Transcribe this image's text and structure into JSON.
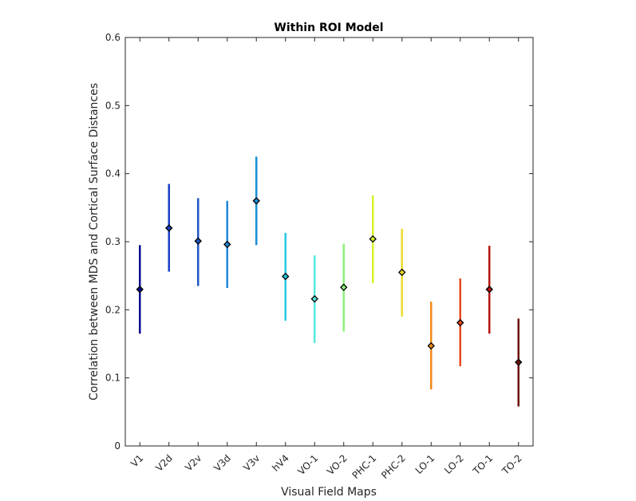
{
  "chart_data": {
    "type": "errorbar",
    "title": "Within ROI Model",
    "xlabel": "Visual Field Maps",
    "ylabel": "Correlation between MDS and Cortical Surface Distances",
    "ylim": [
      0,
      0.6
    ],
    "yticks": [
      "0",
      "0.1",
      "0.2",
      "0.3",
      "0.4",
      "0.5",
      "0.6"
    ],
    "grid": false,
    "categories": [
      "V1",
      "V2d",
      "V2v",
      "V3d",
      "V3v",
      "hV4",
      "VO-1",
      "VO-2",
      "PHC-1",
      "PHC-2",
      "LO-1",
      "LO-2",
      "TO-1",
      "TO-2"
    ],
    "values": [
      0.23,
      0.32,
      0.301,
      0.296,
      0.36,
      0.249,
      0.216,
      0.233,
      0.304,
      0.255,
      0.147,
      0.181,
      0.23,
      0.123
    ],
    "lower": [
      0.165,
      0.256,
      0.235,
      0.232,
      0.295,
      0.184,
      0.151,
      0.168,
      0.239,
      0.19,
      0.083,
      0.117,
      0.165,
      0.058
    ],
    "upper": [
      0.295,
      0.385,
      0.364,
      0.36,
      0.425,
      0.313,
      0.28,
      0.297,
      0.368,
      0.319,
      0.212,
      0.246,
      0.294,
      0.187
    ],
    "colors": [
      "#0b0b8f",
      "#1a3fc4",
      "#1f57c2",
      "#1e88d8",
      "#1a8fd6",
      "#27c9e1",
      "#56e8e0",
      "#8cf27a",
      "#d8f22a",
      "#ecdc2a",
      "#ee8a1b",
      "#e74a1c",
      "#b5140f",
      "#6b1208"
    ]
  }
}
